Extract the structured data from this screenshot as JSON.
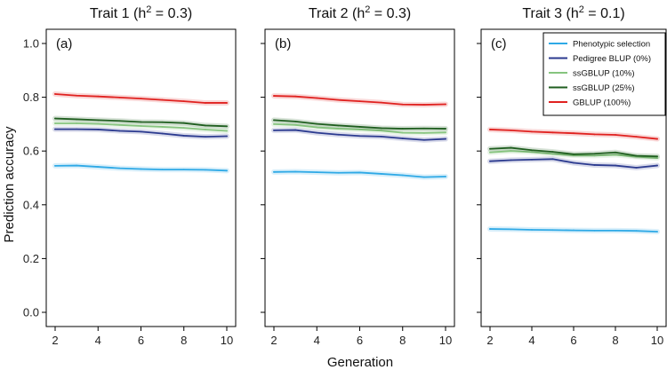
{
  "figure": {
    "ylabel": "Prediction accuracy",
    "xlabel": "Generation"
  },
  "chart_data": [
    {
      "type": "line",
      "panel_tag": "(a)",
      "title_main": "Trait 1 (h",
      "title_sup": "2",
      "title_tail": " = 0.3)",
      "xlabel": "Generation",
      "ylabel": "Prediction accuracy",
      "xlim": [
        2,
        10
      ],
      "ylim": [
        0,
        1
      ],
      "x_ticks": [
        2,
        4,
        6,
        8,
        10
      ],
      "y_ticks": [
        0.0,
        0.2,
        0.4,
        0.6,
        0.8,
        1.0
      ],
      "y_tick_labels": [
        "0.0",
        "0.2",
        "0.4",
        "0.6",
        "0.8",
        "1.0"
      ],
      "grid": false,
      "x": [
        2,
        3,
        4,
        5,
        6,
        7,
        8,
        9,
        10
      ],
      "series": [
        {
          "color": "#2ea9e6",
          "values": [
            0.545,
            0.546,
            0.541,
            0.536,
            0.533,
            0.531,
            0.531,
            0.53,
            0.527
          ]
        },
        {
          "color": "#2b3a8f",
          "values": [
            0.681,
            0.681,
            0.68,
            0.675,
            0.672,
            0.665,
            0.657,
            0.653,
            0.655
          ]
        },
        {
          "color": "#86c47e",
          "values": [
            0.703,
            0.703,
            0.701,
            0.697,
            0.693,
            0.69,
            0.686,
            0.68,
            0.675
          ]
        },
        {
          "color": "#1f5e1f",
          "values": [
            0.721,
            0.718,
            0.715,
            0.712,
            0.708,
            0.707,
            0.704,
            0.695,
            0.692
          ]
        },
        {
          "color": "#e0211f",
          "values": [
            0.812,
            0.806,
            0.803,
            0.799,
            0.795,
            0.79,
            0.785,
            0.779,
            0.779
          ]
        }
      ]
    },
    {
      "type": "line",
      "panel_tag": "(b)",
      "title_main": "Trait 2 (h",
      "title_sup": "2",
      "title_tail": " = 0.3)",
      "xlabel": "Generation",
      "ylabel": "Prediction accuracy",
      "xlim": [
        2,
        10
      ],
      "ylim": [
        0,
        1
      ],
      "x_ticks": [
        2,
        4,
        6,
        8,
        10
      ],
      "y_ticks": [
        0.0,
        0.2,
        0.4,
        0.6,
        0.8,
        1.0
      ],
      "grid": false,
      "x": [
        2,
        3,
        4,
        5,
        6,
        7,
        8,
        9,
        10
      ],
      "series": [
        {
          "color": "#2ea9e6",
          "values": [
            0.522,
            0.523,
            0.521,
            0.519,
            0.52,
            0.515,
            0.51,
            0.503,
            0.505
          ]
        },
        {
          "color": "#2b3a8f",
          "values": [
            0.677,
            0.678,
            0.668,
            0.661,
            0.656,
            0.654,
            0.647,
            0.641,
            0.645
          ]
        },
        {
          "color": "#86c47e",
          "values": [
            0.7,
            0.697,
            0.688,
            0.683,
            0.68,
            0.676,
            0.668,
            0.667,
            0.669
          ]
        },
        {
          "color": "#1f5e1f",
          "values": [
            0.715,
            0.71,
            0.701,
            0.695,
            0.69,
            0.685,
            0.683,
            0.684,
            0.683
          ]
        },
        {
          "color": "#e0211f",
          "values": [
            0.805,
            0.803,
            0.797,
            0.79,
            0.785,
            0.78,
            0.773,
            0.772,
            0.774
          ]
        }
      ]
    },
    {
      "type": "line",
      "panel_tag": "(c)",
      "title_main": "Trait 3 (h",
      "title_sup": "2",
      "title_tail": " = 0.1)",
      "xlabel": "Generation",
      "ylabel": "Prediction accuracy",
      "xlim": [
        2,
        10
      ],
      "ylim": [
        0,
        1
      ],
      "x_ticks": [
        2,
        4,
        6,
        8,
        10
      ],
      "y_ticks": [
        0.0,
        0.2,
        0.4,
        0.6,
        0.8,
        1.0
      ],
      "grid": false,
      "x": [
        2,
        3,
        4,
        5,
        6,
        7,
        8,
        9,
        10
      ],
      "series": [
        {
          "color": "#2ea9e6",
          "values": [
            0.31,
            0.309,
            0.307,
            0.306,
            0.305,
            0.304,
            0.304,
            0.303,
            0.3
          ]
        },
        {
          "color": "#2b3a8f",
          "values": [
            0.562,
            0.566,
            0.568,
            0.57,
            0.556,
            0.548,
            0.546,
            0.538,
            0.546
          ]
        },
        {
          "color": "#86c47e",
          "values": [
            0.595,
            0.6,
            0.596,
            0.589,
            0.584,
            0.583,
            0.586,
            0.579,
            0.574
          ]
        },
        {
          "color": "#1f5e1f",
          "values": [
            0.608,
            0.612,
            0.603,
            0.597,
            0.588,
            0.59,
            0.595,
            0.582,
            0.58
          ]
        },
        {
          "color": "#e0211f",
          "values": [
            0.68,
            0.677,
            0.672,
            0.669,
            0.666,
            0.662,
            0.66,
            0.653,
            0.645
          ]
        }
      ]
    }
  ],
  "legend": {
    "placement": "top-right of panel (c)",
    "items": [
      {
        "label": "Phenotypic selection",
        "color": "#2ea9e6"
      },
      {
        "label": "Pedigree BLUP (0%)",
        "color": "#2b3a8f"
      },
      {
        "label": "ssGBLUP (10%)",
        "color": "#86c47e"
      },
      {
        "label": "ssGBLUP (25%)",
        "color": "#1f5e1f"
      },
      {
        "label": "GBLUP (100%)",
        "color": "#e0211f"
      }
    ]
  }
}
